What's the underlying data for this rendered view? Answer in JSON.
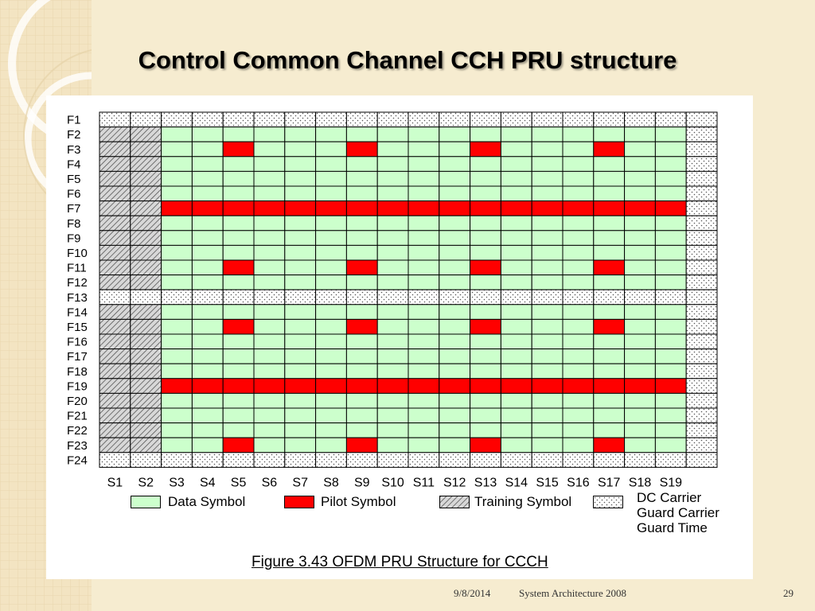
{
  "slide": {
    "title": "Control Common Channel CCH PRU structure",
    "footer": {
      "date": "9/8/2014",
      "title": "System Architecture 2008",
      "page": "29"
    }
  },
  "figure": {
    "caption": "Figure 3.43 OFDM PRU Structure for CCCH",
    "row_labels": [
      "F1",
      "F2",
      "F3",
      "F4",
      "F5",
      "F6",
      "F7",
      "F8",
      "F9",
      "F10",
      "F11",
      "F12",
      "F13",
      "F14",
      "F15",
      "F16",
      "F17",
      "F18",
      "F19",
      "F20",
      "F21",
      "F22",
      "F23",
      "F24"
    ],
    "column_labels": [
      "S1",
      "S2",
      "S3",
      "S4",
      "S5",
      "S6",
      "S7",
      "S8",
      "S9",
      "S10",
      "S11",
      "S12",
      "S13",
      "S14",
      "S15",
      "S16",
      "S17",
      "S18",
      "S19"
    ],
    "grid": {
      "dc_guard_rows": [
        "F1",
        "F13",
        "F24"
      ],
      "guard_time_columns": [
        "S1"
      ],
      "training_symbol_columns": [
        "S1",
        "S2"
      ],
      "pilot_rows_full": [
        "F7",
        "F19"
      ],
      "pilot_rows_partial": [
        "F3",
        "F11",
        "F15",
        "F23"
      ],
      "pilot_columns_partial": [
        "S5",
        "S9",
        "S13",
        "S17"
      ],
      "guard_carrier_right": true
    },
    "legend": {
      "data_symbol": "Data Symbol",
      "pilot_symbol": "Pilot Symbol",
      "training_symbol": "Training Symbol",
      "dc_carrier": "DC Carrier",
      "guard_carrier": "Guard Carrier",
      "guard_time": "Guard Time"
    },
    "colors": {
      "data": "#ccffcc",
      "pilot": "#ff0000",
      "dotted_bg": "#ffffff",
      "hatch_bg": "#d8d8d8",
      "grid_line": "#000000"
    }
  },
  "decor": {
    "background": "#f6ecd0"
  }
}
